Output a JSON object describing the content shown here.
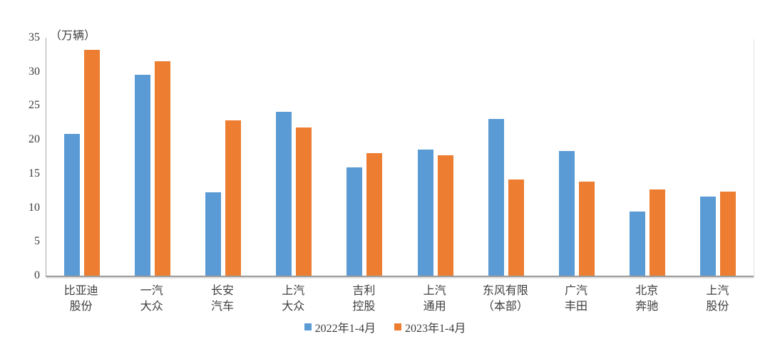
{
  "chart_data": {
    "type": "bar",
    "title": "",
    "unit_label": "（万辆）",
    "xlabel": "",
    "ylabel": "万辆",
    "ylim": [
      0,
      35
    ],
    "yticks": [
      0,
      5,
      10,
      15,
      20,
      25,
      30,
      35
    ],
    "grid": false,
    "legend_position": "bottom",
    "categories": [
      "比亚迪\n股份",
      "一汽\n大众",
      "长安\n汽车",
      "上汽\n大众",
      "吉利\n控股",
      "上汽\n通用",
      "东风有限\n（本部）",
      "广汽\n丰田",
      "北京\n奔驰",
      "上汽\n股份"
    ],
    "series": [
      {
        "name": "2022年1-4月",
        "color": "#5B9BD5",
        "values": [
          20.9,
          29.6,
          12.3,
          24.1,
          15.9,
          18.6,
          23.1,
          18.3,
          9.4,
          11.6
        ]
      },
      {
        "name": "2023年1-4月",
        "color": "#ED7D31",
        "values": [
          33.2,
          31.5,
          22.8,
          21.8,
          18.0,
          17.7,
          14.2,
          13.8,
          12.7,
          12.4
        ]
      }
    ],
    "colors": {
      "axis": "#9b9b9b",
      "text": "#3d3d3d",
      "background": "#ffffff"
    }
  }
}
